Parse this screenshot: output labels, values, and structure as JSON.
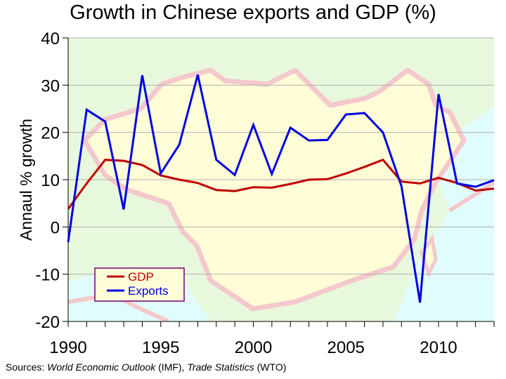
{
  "chart_data": {
    "type": "line",
    "title": "Growth in Chinese exports and GDP (%)",
    "xlabel": "",
    "ylabel": "Annaul % growth",
    "xlim": [
      1990,
      2013
    ],
    "ylim": [
      -20,
      40
    ],
    "x_ticks": [
      1990,
      1995,
      2000,
      2005,
      2010
    ],
    "y_ticks": [
      -20,
      -10,
      0,
      10,
      20,
      30,
      40
    ],
    "grid": "horizontal",
    "legend_position": "bottom-left",
    "background": "map of China",
    "x": [
      1990,
      1991,
      1992,
      1993,
      1994,
      1995,
      1996,
      1997,
      1998,
      1999,
      2000,
      2001,
      2002,
      2003,
      2004,
      2005,
      2006,
      2007,
      2008,
      2009,
      2010,
      2011,
      2012,
      2013
    ],
    "series": [
      {
        "name": "GDP",
        "color": "#c00000",
        "values": [
          3.8,
          9.2,
          14.2,
          14.0,
          13.1,
          10.9,
          10.0,
          9.3,
          7.8,
          7.6,
          8.4,
          8.3,
          9.1,
          10.0,
          10.1,
          11.3,
          12.7,
          14.2,
          9.6,
          9.2,
          10.4,
          9.3,
          7.7,
          8.1
        ]
      },
      {
        "name": "Exports",
        "color": "#0000e0",
        "values": [
          -3.2,
          24.8,
          22.3,
          3.7,
          32.1,
          11.3,
          17.4,
          32.2,
          14.2,
          11.0,
          21.6,
          11.2,
          21.0,
          18.3,
          18.4,
          23.8,
          24.1,
          20.0,
          8.6,
          -16.0,
          28.1,
          9.2,
          8.5,
          9.9
        ]
      }
    ]
  },
  "source": {
    "prefix": "Sources: ",
    "src1": "World Economic Outlook",
    "org1": " (IMF), ",
    "src2": "Trade Statistics",
    "org2": " (WTO)"
  }
}
